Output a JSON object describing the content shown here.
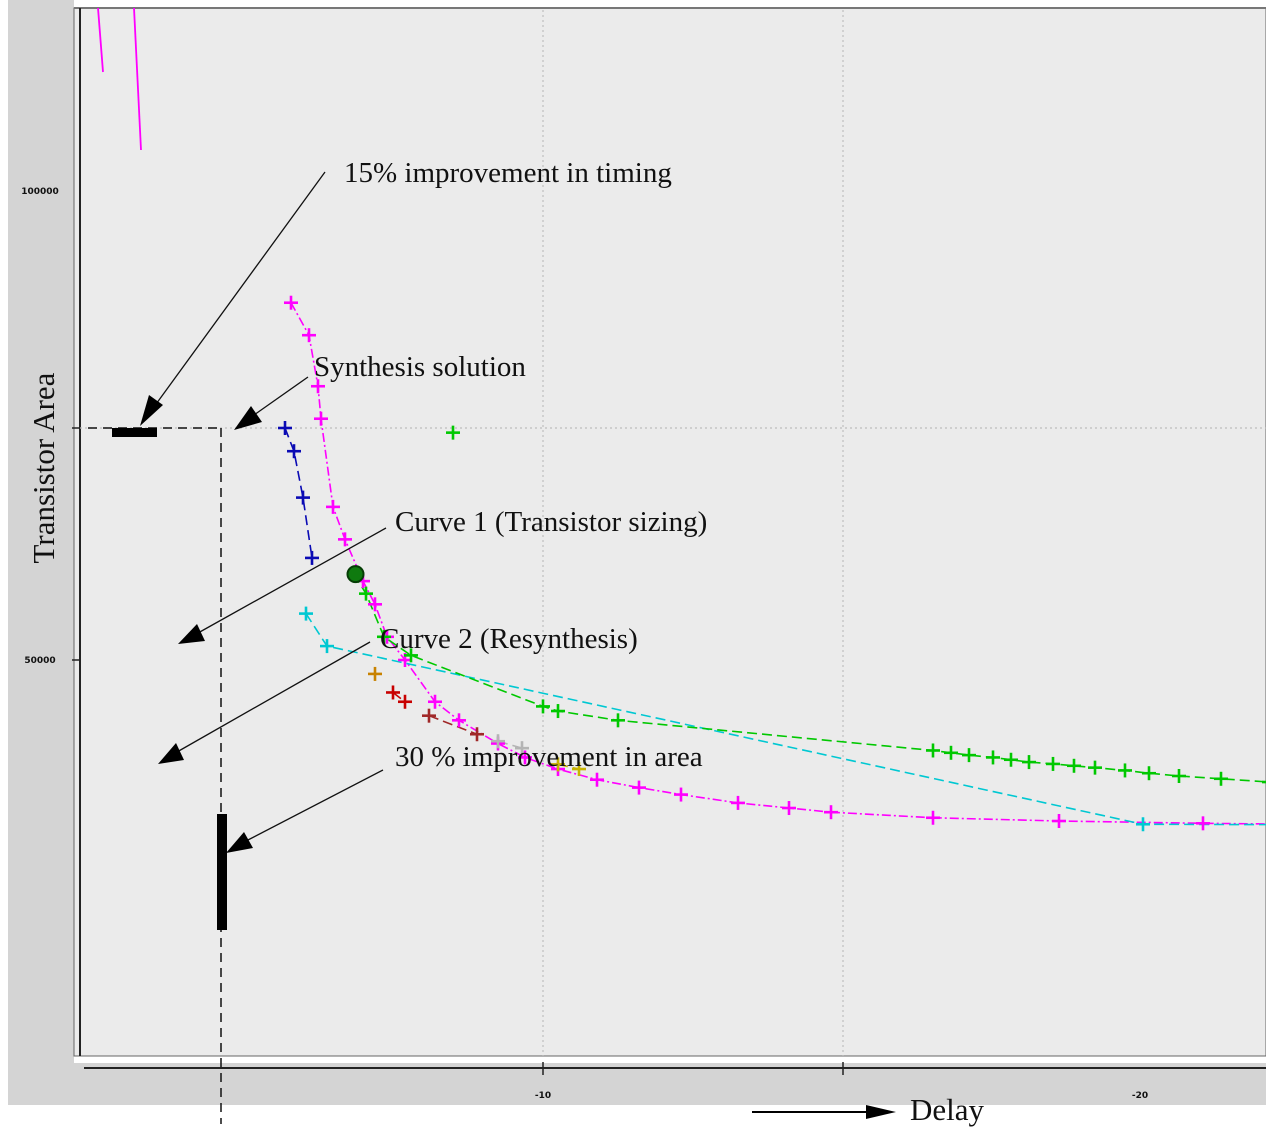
{
  "chart_data": {
    "type": "scatter",
    "title": "",
    "xlabel": "Delay",
    "ylabel": "Transistor Area",
    "x_ticks": [
      "-10",
      "-20"
    ],
    "y_ticks": [
      "100000",
      "50000"
    ],
    "grid": true,
    "colors": {
      "background": "#ebebeb",
      "sizing": "#ff00ff",
      "blue": "#0a0ab4",
      "cyan": "#00c8d2",
      "green": "#00c800",
      "orange": "#c88200",
      "red": "#c80000",
      "darkred": "#a02828",
      "gray": "#b4b4b4",
      "olive": "#c8b400"
    },
    "series": [
      {
        "name": "Curve 1 (Transistor sizing)",
        "color": "#ff00ff",
        "points": [
          [
            1.6,
            127000
          ],
          [
            2.2,
            120000
          ],
          [
            2.5,
            109000
          ],
          [
            2.6,
            102000
          ],
          [
            3.0,
            83000
          ],
          [
            3.4,
            76000
          ],
          [
            4.0,
            67000
          ],
          [
            4.4,
            62000
          ],
          [
            4.8,
            55000
          ],
          [
            5.4,
            50000
          ],
          [
            6.4,
            41000
          ],
          [
            7.2,
            37000
          ],
          [
            8.5,
            32000
          ],
          [
            9.4,
            29000
          ],
          [
            10.5,
            26500
          ],
          [
            11.8,
            24200
          ],
          [
            13.2,
            22500
          ],
          [
            14.6,
            21000
          ],
          [
            16.5,
            19200
          ],
          [
            18.2,
            18100
          ],
          [
            19.6,
            17200
          ],
          [
            23.0,
            16000
          ],
          [
            27.2,
            15300
          ],
          [
            32.0,
            14800
          ],
          [
            37.0,
            14500
          ]
        ]
      },
      {
        "color": "#0a0ab4",
        "points": [
          [
            1.4,
            100000
          ],
          [
            1.7,
            95000
          ],
          [
            2.0,
            85000
          ],
          [
            2.3,
            72000
          ]
        ]
      },
      {
        "color": "#00c8d2",
        "points": [
          [
            2.1,
            60000
          ],
          [
            2.8,
            53000
          ],
          [
            30.0,
            14600
          ],
          [
            35.0,
            14500
          ],
          [
            37.5,
            14400
          ]
        ]
      },
      {
        "color": "#00c800",
        "points": [
          [
            3.7,
            68500
          ],
          [
            4.1,
            64300
          ],
          [
            4.7,
            55000
          ],
          [
            5.6,
            51000
          ],
          [
            10.0,
            40000
          ],
          [
            10.5,
            39000
          ],
          [
            12.5,
            37000
          ],
          [
            23.0,
            30500
          ],
          [
            23.6,
            30000
          ],
          [
            24.2,
            29500
          ],
          [
            25.0,
            29000
          ],
          [
            25.6,
            28500
          ],
          [
            26.2,
            28000
          ],
          [
            27.0,
            27600
          ],
          [
            27.7,
            27200
          ],
          [
            28.4,
            26800
          ],
          [
            29.4,
            26200
          ],
          [
            30.2,
            25600
          ],
          [
            31.2,
            25000
          ],
          [
            32.6,
            24400
          ],
          [
            34.2,
            23700
          ],
          [
            35.3,
            23300
          ],
          [
            36.6,
            22800
          ],
          [
            37.6,
            22500
          ]
        ]
      },
      {
        "color": "#c88200",
        "points": [
          [
            4.4,
            47000
          ]
        ]
      },
      {
        "color": "#c80000",
        "points": [
          [
            5.0,
            43000
          ],
          [
            5.4,
            41000
          ]
        ]
      },
      {
        "color": "#a02828",
        "points": [
          [
            6.2,
            38000
          ],
          [
            7.8,
            34000
          ]
        ]
      },
      {
        "color": "#b4b4b4",
        "points": [
          [
            8.5,
            32500
          ],
          [
            9.3,
            31000
          ]
        ]
      },
      {
        "color": "#c8b400",
        "points": [
          [
            10.5,
            27500
          ],
          [
            11.2,
            26500
          ]
        ]
      }
    ],
    "markers": [
      {
        "label": "Synthesis solution",
        "color": "#00c800",
        "x": 7.0,
        "y": 99000
      },
      {
        "color": "#0f7a0f",
        "x": 3.75,
        "y": 68500,
        "shape": "circle"
      }
    ],
    "annotations": [
      "15% improvement in timing",
      "Synthesis solution",
      "Curve 1 (Transistor sizing)",
      "Curve 2 (Resynthesis)",
      "30 % improvement in area"
    ]
  }
}
